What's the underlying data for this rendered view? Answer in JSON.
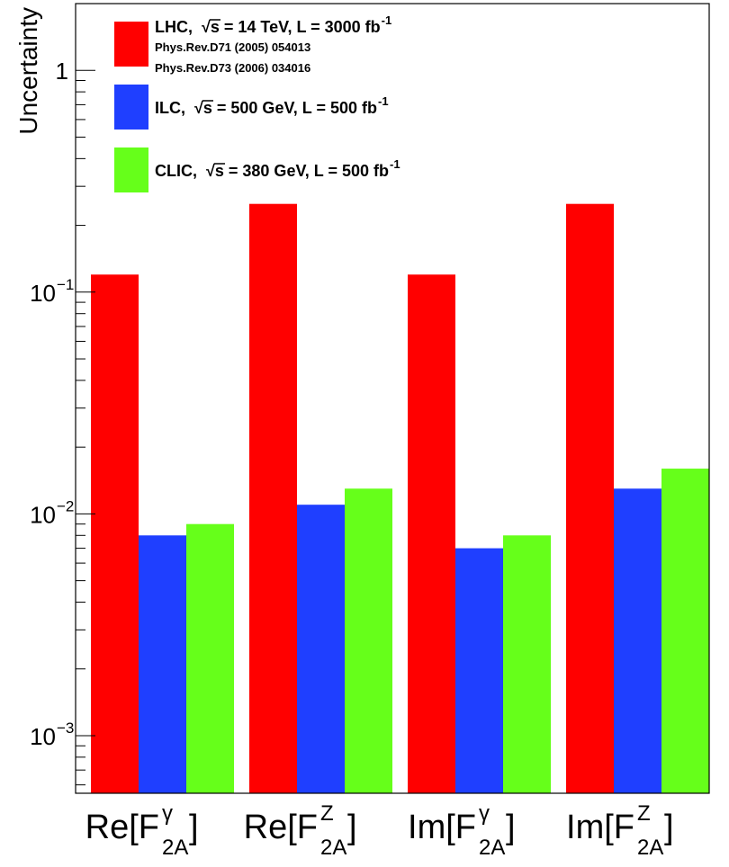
{
  "chart_data": {
    "type": "bar",
    "yscale": "log",
    "ylim": [
      0.00055,
      2.0
    ],
    "ylabel": "Uncertainty",
    "yticks": [
      {
        "value": 1,
        "base": "1",
        "exp": ""
      },
      {
        "value": 0.1,
        "base": "10",
        "exp": "−1"
      },
      {
        "value": 0.01,
        "base": "10",
        "exp": "−2"
      },
      {
        "value": 0.001,
        "base": "10",
        "exp": "−3"
      }
    ],
    "categories": [
      {
        "prefix": "Re[F",
        "sup": "γ",
        "sub": "2A",
        "suffix": "]"
      },
      {
        "prefix": "Re[F",
        "sup": "Z",
        "sub": "2A",
        "suffix": "]"
      },
      {
        "prefix": "Im[F",
        "sup": "γ",
        "sub": "2A",
        "suffix": "]"
      },
      {
        "prefix": "Im[F",
        "sup": "Z",
        "sub": "2A",
        "suffix": "]"
      }
    ],
    "series": [
      {
        "name": "LHC",
        "color": "#ff0000",
        "values": [
          0.12,
          0.25,
          0.12,
          0.25
        ],
        "legend": {
          "lead": "LHC,",
          "sqrt": "√s = 14 TeV, L = 3000 fb",
          "exp": "-1"
        },
        "refs": [
          "Phys.Rev.D71 (2005) 054013",
          "Phys.Rev.D73 (2006) 034016"
        ]
      },
      {
        "name": "ILC",
        "color": "#1f3fff",
        "values": [
          0.008,
          0.011,
          0.007,
          0.013
        ],
        "legend": {
          "lead": "ILC,",
          "sqrt": "√s = 500 GeV, L = 500 fb",
          "exp": "-1"
        },
        "refs": []
      },
      {
        "name": "CLIC",
        "color": "#66ff1a",
        "values": [
          0.009,
          0.013,
          0.008,
          0.016
        ],
        "legend": {
          "lead": "CLIC,",
          "sqrt": "√s = 380 GeV, L = 500 fb",
          "exp": "-1"
        },
        "refs": []
      }
    ]
  }
}
